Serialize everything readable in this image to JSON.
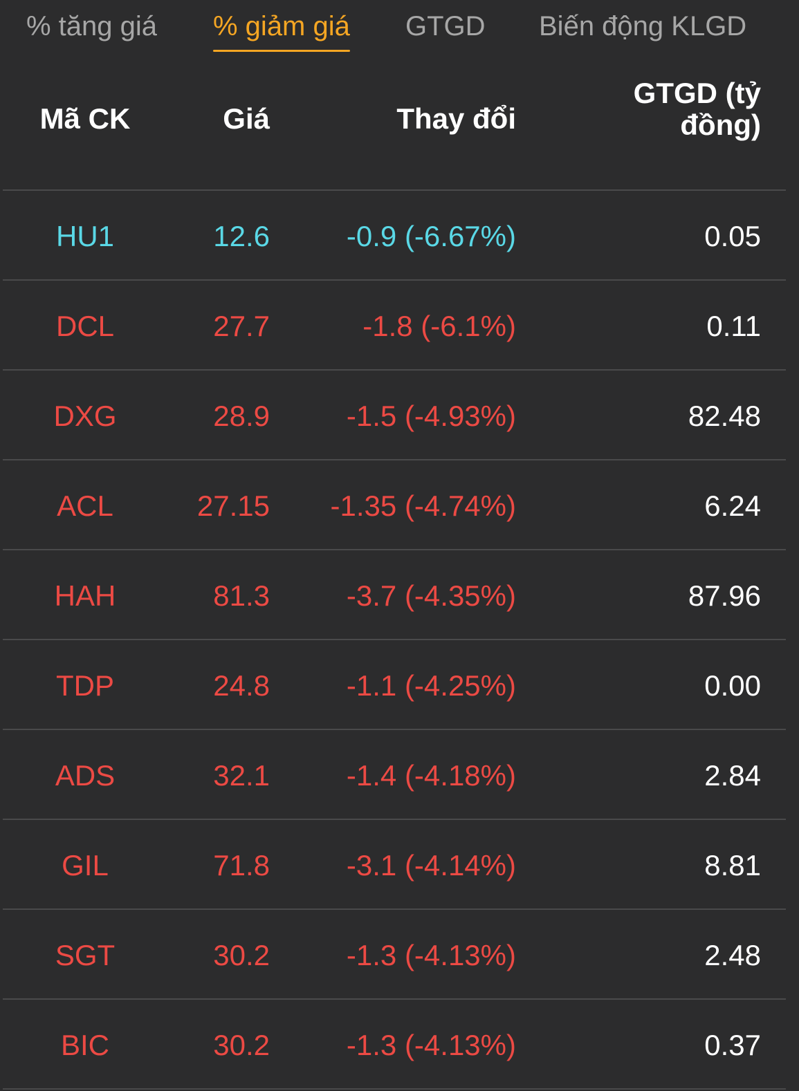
{
  "tabs": [
    {
      "label": "% tăng giá",
      "active": false
    },
    {
      "label": "% giảm giá",
      "active": true
    },
    {
      "label": "GTGD",
      "active": false
    },
    {
      "label": "Biến động KLGD",
      "active": false
    }
  ],
  "colors": {
    "active_tab": "#f5a623",
    "inactive_tab": "#a7a7a7",
    "price_down": "#ec4a44",
    "price_floor": "#5ad8e6",
    "background": "#2c2c2d"
  },
  "table": {
    "headers": {
      "symbol": "Mã CK",
      "price": "Giá",
      "change": "Thay đổi",
      "value": "GTGD (tỷ đồng)"
    },
    "rows": [
      {
        "symbol": "HU1",
        "price": "12.6",
        "change": "-0.9 (-6.67%)",
        "value": "0.05",
        "status": "floor"
      },
      {
        "symbol": "DCL",
        "price": "27.7",
        "change": "-1.8 (-6.1%)",
        "value": "0.11",
        "status": "down"
      },
      {
        "symbol": "DXG",
        "price": "28.9",
        "change": "-1.5 (-4.93%)",
        "value": "82.48",
        "status": "down"
      },
      {
        "symbol": "ACL",
        "price": "27.15",
        "change": "-1.35 (-4.74%)",
        "value": "6.24",
        "status": "down"
      },
      {
        "symbol": "HAH",
        "price": "81.3",
        "change": "-3.7 (-4.35%)",
        "value": "87.96",
        "status": "down"
      },
      {
        "symbol": "TDP",
        "price": "24.8",
        "change": "-1.1 (-4.25%)",
        "value": "0.00",
        "status": "down"
      },
      {
        "symbol": "ADS",
        "price": "32.1",
        "change": "-1.4 (-4.18%)",
        "value": "2.84",
        "status": "down"
      },
      {
        "symbol": "GIL",
        "price": "71.8",
        "change": "-3.1 (-4.14%)",
        "value": "8.81",
        "status": "down"
      },
      {
        "symbol": "SGT",
        "price": "30.2",
        "change": "-1.3 (-4.13%)",
        "value": "2.48",
        "status": "down"
      },
      {
        "symbol": "BIC",
        "price": "30.2",
        "change": "-1.3 (-4.13%)",
        "value": "0.37",
        "status": "down"
      }
    ]
  }
}
